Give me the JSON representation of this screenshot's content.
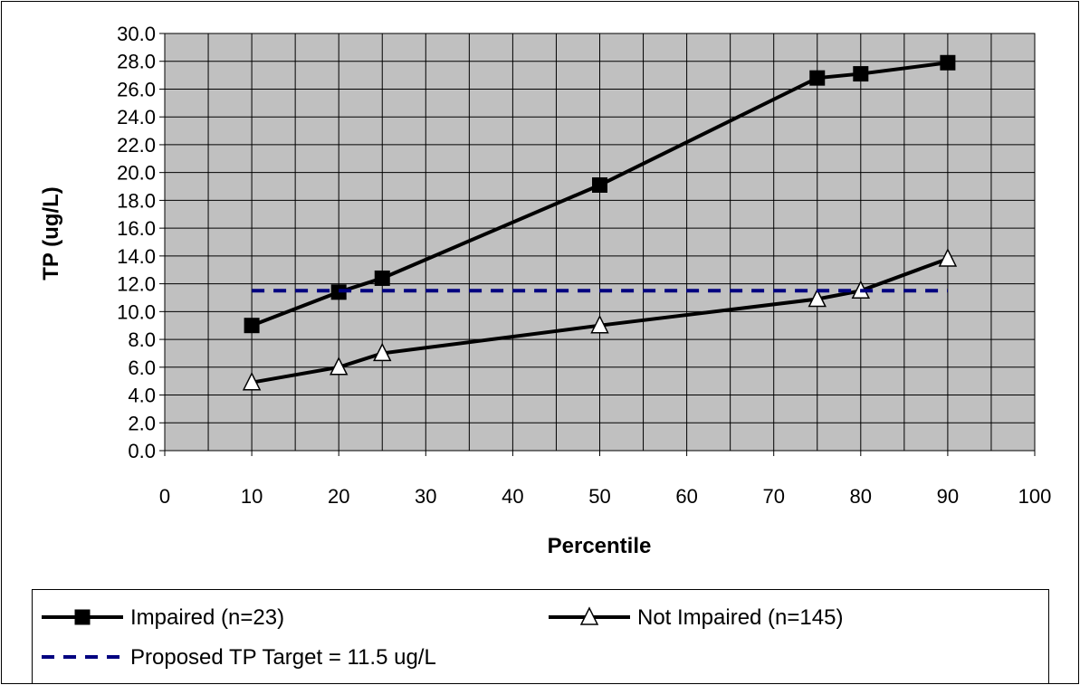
{
  "chart_data": {
    "type": "line",
    "title": "",
    "xlabel": "Percentile",
    "ylabel": "TP (ug/L)",
    "xlim": [
      0,
      100
    ],
    "ylim": [
      0,
      30
    ],
    "x_ticks": [
      "0",
      "10",
      "20",
      "30",
      "40",
      "50",
      "60",
      "70",
      "80",
      "90",
      "100"
    ],
    "y_ticks": [
      "0.0",
      "2.0",
      "4.0",
      "6.0",
      "8.0",
      "10.0",
      "12.0",
      "14.0",
      "16.0",
      "18.0",
      "20.0",
      "22.0",
      "24.0",
      "26.0",
      "28.0",
      "30.0"
    ],
    "grid": true,
    "legend_position": "bottom",
    "plot_background": "#c0c0c0",
    "series": [
      {
        "name": "Impaired (n=23)",
        "marker": "square-filled",
        "color": "#000000",
        "x": [
          10,
          20,
          25,
          50,
          75,
          80,
          90
        ],
        "y": [
          9.0,
          11.4,
          12.4,
          19.1,
          26.8,
          27.1,
          27.9
        ]
      },
      {
        "name": "Not Impaired (n=145)",
        "marker": "triangle-open",
        "color": "#000000",
        "x": [
          10,
          20,
          25,
          50,
          75,
          80,
          90
        ],
        "y": [
          4.9,
          6.0,
          7.0,
          9.0,
          10.9,
          11.5,
          13.8
        ]
      },
      {
        "name": "Proposed TP Target = 11.5 ug/L",
        "marker": "none",
        "line_style": "dashed",
        "color": "#000080",
        "x": [
          10,
          90
        ],
        "y": [
          11.5,
          11.5
        ]
      }
    ]
  }
}
